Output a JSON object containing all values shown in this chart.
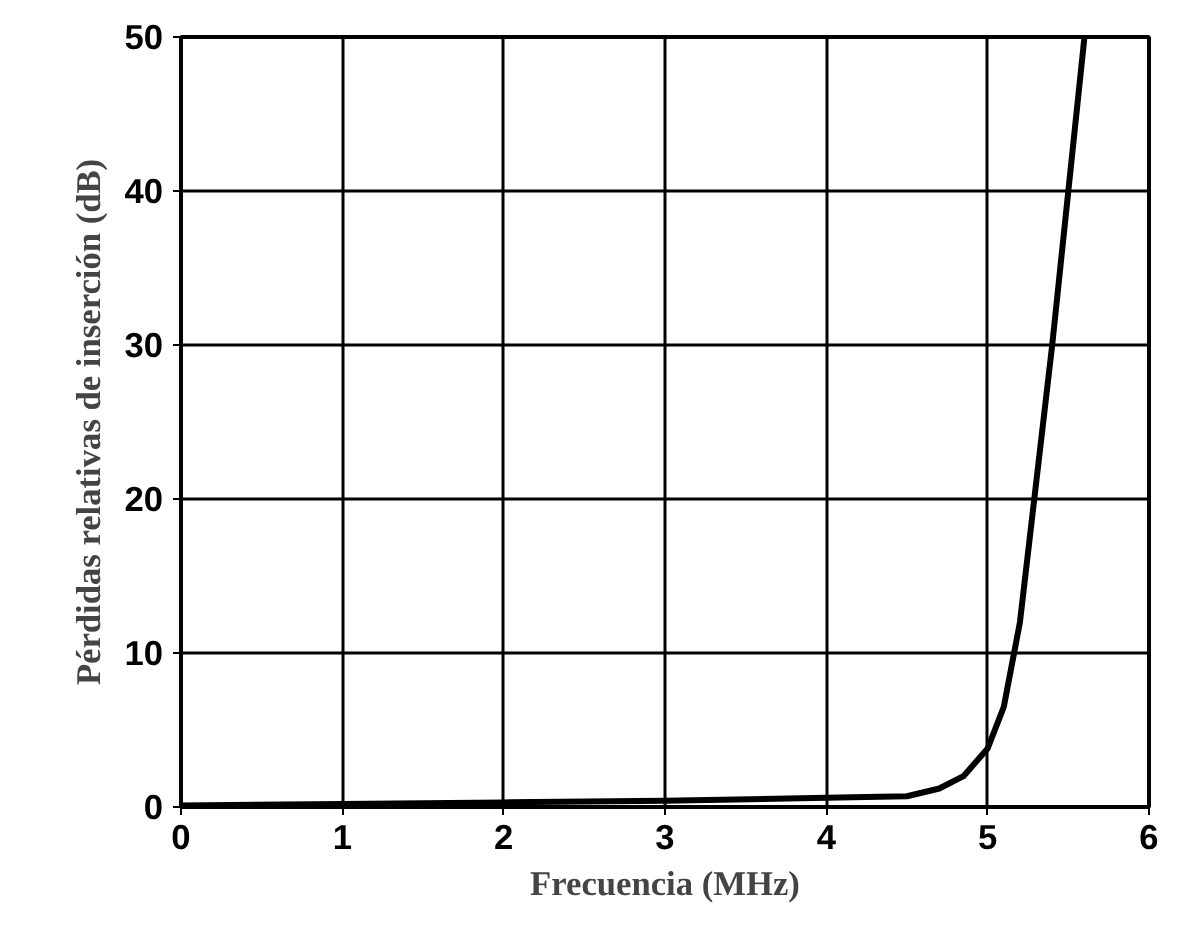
{
  "chart_data": {
    "type": "line",
    "xlabel": "Frecuencia (MHz)",
    "ylabel": "Pérdidas relativas de inserción (dB)",
    "x": [
      0,
      1,
      2,
      3,
      4,
      4.5,
      4.7,
      4.85,
      5.0,
      5.1,
      5.2,
      5.4,
      5.6
    ],
    "series": [
      {
        "color": "#000000",
        "values": [
          0.1,
          0.2,
          0.3,
          0.4,
          0.6,
          0.7,
          1.2,
          2,
          3.8,
          6.5,
          12,
          30,
          50
        ]
      }
    ],
    "xlim": [
      0,
      6
    ],
    "ylim": [
      0,
      50
    ],
    "xticks": [
      0,
      1,
      2,
      3,
      4,
      5,
      6
    ],
    "yticks": [
      0,
      10,
      20,
      30,
      40,
      50
    ],
    "grid": true,
    "line_style": "solid"
  }
}
